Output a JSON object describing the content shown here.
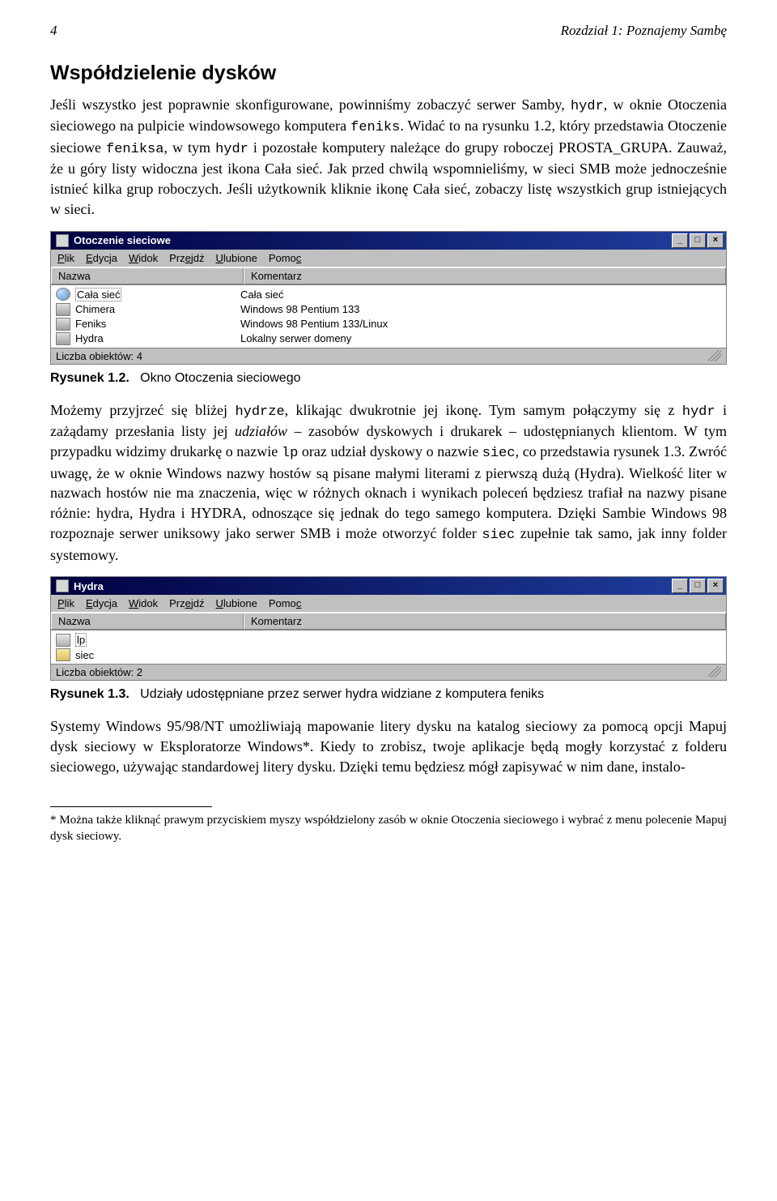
{
  "header": {
    "page_number": "4",
    "chapter": "Rozdział 1: Poznajemy Sambę"
  },
  "section_title": "Współdzielenie dysków",
  "para1_a": "Jeśli wszystko jest poprawnie skonfigurowane, powinniśmy zobaczyć serwer Samby, ",
  "para1_code1": "hydr",
  "para1_b": ", w oknie Otoczenia sieciowego na pulpicie windowsowego komputera ",
  "para1_code2": "feniks",
  "para1_c": ". Widać to na rysunku 1.2, który przedstawia Otoczenie sieciowe ",
  "para1_code3": "feniksa",
  "para1_d": ", w tym ",
  "para1_code4": "hydr",
  "para1_e": " i pozostałe komputery należące do grupy roboczej PROSTA_GRUPA. Zauważ, że u góry listy widoczna jest ikona Cała sieć. Jak przed chwilą wspomnieliśmy, w sieci SMB może jednocześnie istnieć kilka grup roboczych. Jeśli użytkownik kliknie ikonę Cała sieć, zobaczy listę wszystkich grup istniejących w sieci.",
  "window1": {
    "title": "Otoczenie sieciowe",
    "menus": [
      "Plik",
      "Edycja",
      "Widok",
      "Przejdź",
      "Ulubione",
      "Pomoc"
    ],
    "col_name": "Nazwa",
    "col_desc": "Komentarz",
    "rows": [
      {
        "icon": "globe",
        "name": "Cała sieć",
        "selected": true,
        "desc": "Cała sieć"
      },
      {
        "icon": "pc",
        "name": "Chimera",
        "selected": false,
        "desc": "Windows 98 Pentium 133"
      },
      {
        "icon": "pc",
        "name": "Feniks",
        "selected": false,
        "desc": "Windows 98 Pentium 133/Linux"
      },
      {
        "icon": "pc",
        "name": "Hydra",
        "selected": false,
        "desc": "Lokalny serwer domeny"
      }
    ],
    "status": "Liczba obiektów: 4"
  },
  "caption1_bold": "Rysunek 1.2.",
  "caption1_rest": "Okno Otoczenia sieciowego",
  "para2_a": "Możemy przyjrzeć się bliżej ",
  "para2_code1": "hydrze",
  "para2_b": ", klikając dwukrotnie jej ikonę. Tym samym połączymy się z ",
  "para2_code2": "hydr",
  "para2_c": " i zażądamy przesłania listy jej ",
  "para2_em1": "udziałów",
  "para2_d": " – zasobów dyskowych i drukarek – udostępnianych klientom. W tym przypadku widzimy drukarkę o nazwie ",
  "para2_code3": "lp",
  "para2_e": " oraz udział dyskowy o nazwie ",
  "para2_code4": "siec",
  "para2_f": ", co przedstawia rysunek 1.3. Zwróć uwagę, że w oknie Windows nazwy hostów są pisane małymi literami z pierwszą dużą (Hydra). Wielkość liter w nazwach hostów nie ma znaczenia, więc w różnych oknach i wynikach poleceń będziesz trafiał na nazwy pisane różnie: hydra, Hydra i HYDRA, odnoszące się jednak do tego samego komputera. Dzięki Sambie Windows 98 rozpoznaje serwer uniksowy jako serwer SMB i może otworzyć folder ",
  "para2_code5": "siec",
  "para2_g": " zupełnie tak samo, jak inny folder systemowy.",
  "window2": {
    "title": "Hydra",
    "menus": [
      "Plik",
      "Edycja",
      "Widok",
      "Przejdź",
      "Ulubione",
      "Pomoc"
    ],
    "col_name": "Nazwa",
    "col_desc": "Komentarz",
    "rows": [
      {
        "icon": "printer",
        "name": "lp",
        "selected": true,
        "desc": ""
      },
      {
        "icon": "folder",
        "name": "siec",
        "selected": false,
        "desc": ""
      }
    ],
    "status": "Liczba obiektów: 2"
  },
  "caption2_bold": "Rysunek 1.3.",
  "caption2_rest": "Udziały udostępniane przez serwer hydra widziane z komputera feniks",
  "para3": "Systemy Windows 95/98/NT umożliwiają mapowanie litery dysku na katalog sieciowy za pomocą opcji Mapuj dysk sieciowy w Eksploratorze Windows*. Kiedy to zrobisz, twoje aplikacje będą mogły korzystać z folderu sieciowego, używając standardowej litery dysku. Dzięki temu będziesz mógł zapisywać w nim dane, instalo-",
  "footnote": "*   Można także kliknąć prawym przyciskiem myszy współdzielony zasób w oknie Otoczenia sieciowego i wybrać z menu polecenie Mapuj dysk sieciowy."
}
